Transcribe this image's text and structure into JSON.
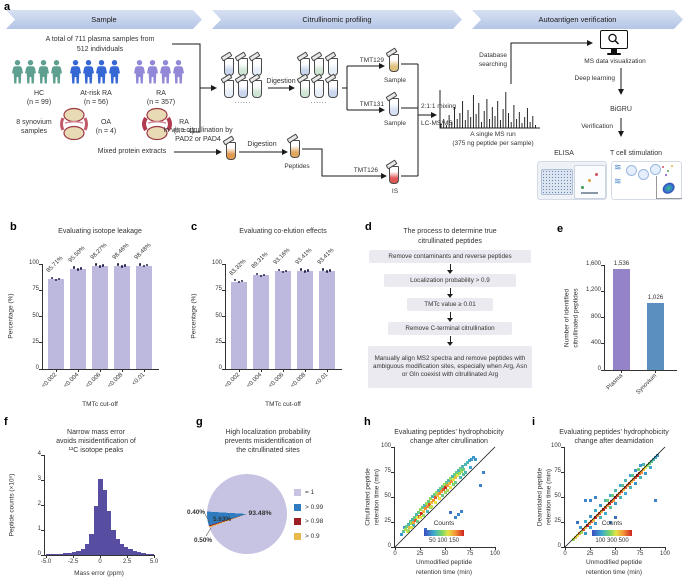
{
  "panel_letters": {
    "a": "a",
    "b": "b",
    "c": "c",
    "d": "d",
    "e": "e",
    "f": "f",
    "g": "g",
    "h": "h",
    "i": "i"
  },
  "panel_a": {
    "banners": [
      {
        "label": "Sample"
      },
      {
        "label": "Citrullinomic profiling"
      },
      {
        "label": "Autoantigen verification"
      }
    ],
    "plasma_total_line1": "A total of 711 plasma samples from",
    "plasma_total_line2": "512 individuals",
    "cohorts": [
      {
        "label": "HC",
        "n": "(n = 99)",
        "color": "#5f9f90"
      },
      {
        "label": "At-risk RA",
        "n": "(n = 56)",
        "color": "#3568d4"
      },
      {
        "label": "RA",
        "n": "(n = 357)",
        "color": "#9189d8"
      }
    ],
    "synovium_line1": "8 synovium",
    "synovium_line2": "samples",
    "synovium_groups": [
      {
        "label": "OA",
        "n": "(n = 4)"
      },
      {
        "label": "RA",
        "n": "(n = 4)"
      }
    ],
    "digestion_label_1": "Digestion",
    "digestion_label_2": "Digestion",
    "dots_1": "......",
    "dots_2": "......",
    "tmt_labels": {
      "tmt129": "TMT129",
      "tmt131": "TMT131",
      "tmt126": "TMT126"
    },
    "tube_labels": {
      "sample_1": "Sample",
      "sample_2": "Sample",
      "is": "IS",
      "peptides": "Peptides"
    },
    "mixing_label": "2:1:1 mixing",
    "lcms_label": "LC-MS/MS",
    "ms_run_line1": "A single MS run",
    "ms_run_line2": "(375 ng peptide per sample)",
    "invitro_line1": "In vitro citrullination by",
    "invitro_line2": "PAD2 or PAD4",
    "mixed_extracts_label": "Mixed protein extracts",
    "database_line1": "Database",
    "database_line2": "searching",
    "ms_vis_label": "MS data visualization",
    "deep_learning_label": "Deep learning",
    "bigru_label": "BiGRU",
    "verification_label": "Verification",
    "elisa_label": "ELISA",
    "tcell_label": "T cell stimulation"
  },
  "panel_d": {
    "title_line1": "The process to determine true",
    "title_line2": "citrullinated peptides",
    "steps": [
      "Remove contaminants and reverse peptides",
      "Localization probability > 0.9",
      "TMTc value ≥ 0.01",
      "Remove C-terminal citrullination",
      "Manually align MS2 spectra and remove peptides with ambiguous modification sites, especially when Arg, Asn or Gln coexist with citrullinated Arg"
    ]
  },
  "chart_data": [
    {
      "id": "b",
      "type": "bar",
      "title": "Evaluating isotope leakage",
      "categories": [
        "<0.002",
        "<0.004",
        "<0.006",
        "<0.008",
        "<0.01"
      ],
      "values": [
        85.71,
        95.5,
        98.27,
        98.46,
        98.48
      ],
      "bar_labels": [
        "85.71%",
        "95.50%",
        "98.27%",
        "98.46%",
        "98.48%"
      ],
      "xlabel": "TMTc cut-off",
      "ylabel": "Percentage (%)",
      "ylim": [
        0,
        100
      ],
      "ytick_labels": [
        "0",
        "25",
        "50",
        "75",
        "100"
      ],
      "bar_color": "#bcb8de",
      "point_color": "#26264f"
    },
    {
      "id": "c",
      "type": "bar",
      "title": "Evaluating co-elution effects",
      "categories": [
        "<0.002",
        "<0.004",
        "<0.006",
        "<0.008",
        "<0.01"
      ],
      "values": [
        83.32,
        89.31,
        93.16,
        93.41,
        93.41
      ],
      "bar_labels": [
        "83.32%",
        "89.31%",
        "93.16%",
        "93.41%",
        "93.41%"
      ],
      "xlabel": "TMTc cut-off",
      "ylabel": "Percentage (%)",
      "ylim": [
        0,
        100
      ],
      "ytick_labels": [
        "0",
        "25",
        "50",
        "75",
        "100"
      ],
      "bar_color": "#bcb8de",
      "point_color": "#26264f"
    },
    {
      "id": "e",
      "type": "bar",
      "title": "",
      "categories": [
        "Plasma",
        "Synovium"
      ],
      "values": [
        1536,
        1026
      ],
      "bar_labels": [
        "1,536",
        "1,026"
      ],
      "ylabel_lines": [
        "Number of identified",
        "citrullinated peptides"
      ],
      "ylim": [
        0,
        1600
      ],
      "ytick_labels": [
        "0",
        "400",
        "800",
        "1,200",
        "1,600"
      ],
      "bar_colors": [
        "#9484c7",
        "#5a8fc0"
      ]
    },
    {
      "id": "f",
      "type": "histogram",
      "title_lines": [
        "Narrow mass error",
        "avoids misidentification of",
        "¹³C isotope peaks"
      ],
      "xlabel": "Mass error (ppm)",
      "ylabel": "Peptide counts (×10⁵)",
      "xlim": [
        -5,
        5
      ],
      "ylim": [
        0,
        4
      ],
      "xtick_labels": [
        "-5.0",
        "-2.5",
        "0",
        "2.5",
        "5.0"
      ],
      "ytick_labels": [
        "0",
        "1",
        "2",
        "3",
        "4"
      ],
      "bin_width": 0.4,
      "counts": [
        0.03,
        0.04,
        0.05,
        0.06,
        0.08,
        0.1,
        0.13,
        0.17,
        0.25,
        0.45,
        0.85,
        1.95,
        3.03,
        2.62,
        1.75,
        1.02,
        0.65,
        0.45,
        0.33,
        0.24,
        0.17,
        0.12,
        0.08,
        0.06,
        0.04
      ],
      "color": "#574ea2"
    },
    {
      "id": "g",
      "type": "pie",
      "title_lines": [
        "High localization probability",
        "prevents misidentification of",
        "the citrullinated sites"
      ],
      "slices": [
        {
          "label": "= 1",
          "pct": 93.48,
          "pct_label": "93.48%",
          "color": "#c7c3e3"
        },
        {
          "label": "> 0.99",
          "pct": 5.63,
          "pct_label": "5.63%",
          "color": "#2f7bbf"
        },
        {
          "label": "> 0.98",
          "pct": 0.4,
          "pct_label": "0.40%",
          "color": "#9c1f24"
        },
        {
          "label": "> 0.9",
          "pct": 0.5,
          "pct_label": "0.50%",
          "color": "#e9b94e"
        }
      ]
    },
    {
      "id": "h",
      "type": "scatter",
      "title_lines": [
        "Evaluating peptides’ hydrophobicity",
        "change after citrullination"
      ],
      "xlabel_lines": [
        "Unmodified peptide",
        "retention time (min)"
      ],
      "ylabel_lines": [
        "Citrullinated peptide",
        "retention time (min)"
      ],
      "xlim": [
        0,
        100
      ],
      "ylim": [
        0,
        100
      ],
      "xtick_labels": [
        "0",
        "25",
        "50",
        "75",
        "100"
      ],
      "ytick_labels": [
        "0",
        "25",
        "50",
        "75",
        "100"
      ],
      "colorbar": {
        "label": "Counts",
        "ticks": [
          "50",
          "100",
          "150"
        ]
      },
      "points": [
        [
          6,
          13,
          0.2
        ],
        [
          8,
          16,
          0.35
        ],
        [
          9,
          20,
          0.2
        ],
        [
          10,
          18,
          0.5
        ],
        [
          11,
          21,
          0.4
        ],
        [
          12,
          16,
          0.6
        ],
        [
          13,
          23,
          0.3
        ],
        [
          14,
          20,
          0.7
        ],
        [
          15,
          26,
          0.4
        ],
        [
          16,
          24,
          0.5
        ],
        [
          17,
          28,
          0.3
        ],
        [
          18,
          25,
          0.75
        ],
        [
          19,
          30,
          0.4
        ],
        [
          20,
          27,
          0.9
        ],
        [
          21,
          33,
          0.3
        ],
        [
          22,
          30,
          0.6
        ],
        [
          23,
          35,
          0.4
        ],
        [
          24,
          31,
          0.9
        ],
        [
          25,
          38,
          0.5
        ],
        [
          26,
          34,
          1
        ],
        [
          27,
          40,
          0.4
        ],
        [
          28,
          36,
          0.7
        ],
        [
          29,
          42,
          0.3
        ],
        [
          30,
          39,
          0.8
        ],
        [
          25,
          30,
          0.6
        ],
        [
          22,
          26,
          0.4
        ],
        [
          18,
          22,
          0.3
        ],
        [
          31,
          44,
          0.5
        ],
        [
          32,
          41,
          0.8
        ],
        [
          33,
          46,
          0.4
        ],
        [
          34,
          43,
          0.9
        ],
        [
          35,
          49,
          0.5
        ],
        [
          36,
          45,
          0.7
        ],
        [
          37,
          51,
          0.3
        ],
        [
          38,
          47,
          0.8
        ],
        [
          39,
          53,
          0.4
        ],
        [
          40,
          50,
          0.9
        ],
        [
          41,
          55,
          0.5
        ],
        [
          42,
          52,
          0.7
        ],
        [
          43,
          57,
          0.3
        ],
        [
          44,
          54,
          0.8
        ],
        [
          45,
          59,
          0.4
        ],
        [
          35,
          40,
          0.5
        ],
        [
          40,
          45,
          0.6
        ],
        [
          32,
          36,
          0.3
        ],
        [
          46,
          56,
          0.8
        ],
        [
          47,
          61,
          0.4
        ],
        [
          48,
          58,
          0.9
        ],
        [
          49,
          63,
          0.5
        ],
        [
          50,
          60,
          1
        ],
        [
          51,
          65,
          0.4
        ],
        [
          52,
          62,
          0.8
        ],
        [
          53,
          67,
          0.3
        ],
        [
          54,
          64,
          0.7
        ],
        [
          55,
          69,
          0.5
        ],
        [
          56,
          66,
          0.8
        ],
        [
          57,
          71,
          0.3
        ],
        [
          58,
          68,
          0.6
        ],
        [
          59,
          73,
          0.4
        ],
        [
          60,
          70,
          0.7
        ],
        [
          50,
          55,
          0.5
        ],
        [
          55,
          60,
          0.6
        ],
        [
          47,
          52,
          0.4
        ],
        [
          61,
          75,
          0.4
        ],
        [
          62,
          72,
          0.6
        ],
        [
          63,
          77,
          0.3
        ],
        [
          64,
          74,
          0.5
        ],
        [
          65,
          79,
          0.4
        ],
        [
          66,
          76,
          0.5
        ],
        [
          67,
          81,
          0.3
        ],
        [
          68,
          78,
          0.4
        ],
        [
          70,
          83,
          0.3
        ],
        [
          72,
          85,
          0.3
        ],
        [
          74,
          87,
          0.25
        ],
        [
          76,
          88,
          0.2
        ],
        [
          78,
          90,
          0.2
        ],
        [
          65,
          70,
          0.3
        ],
        [
          70,
          75,
          0.3
        ],
        [
          60,
          65,
          0.4
        ],
        [
          75,
          80,
          0.25
        ],
        [
          80,
          88,
          0.2
        ],
        [
          60,
          30,
          0.15
        ],
        [
          63,
          33,
          0.15
        ],
        [
          66,
          36,
          0.15
        ],
        [
          85,
          62,
          0.15
        ],
        [
          88,
          75,
          0.15
        ],
        [
          55,
          35,
          0.1
        ],
        [
          30,
          18,
          0.1
        ],
        [
          13,
          17,
          0.5
        ],
        [
          16,
          20,
          0.6
        ],
        [
          44,
          49,
          0.6
        ],
        [
          52,
          57,
          0.5
        ],
        [
          68,
          73,
          0.35
        ],
        [
          36,
          41,
          0.55
        ],
        [
          28,
          32,
          0.5
        ],
        [
          58,
          63,
          0.45
        ]
      ]
    },
    {
      "id": "i",
      "type": "scatter",
      "title_lines": [
        "Evaluating peptides’ hydrophobicity",
        "change after deamidation"
      ],
      "xlabel_lines": [
        "Unmodified peptide",
        "retention time (min)"
      ],
      "ylabel_lines": [
        "Deamidated peptide",
        "retention time (min)"
      ],
      "xlim": [
        0,
        100
      ],
      "ylim": [
        0,
        100
      ],
      "xtick_labels": [
        "0",
        "25",
        "50",
        "75",
        "100"
      ],
      "ytick_labels": [
        "0",
        "25",
        "50",
        "75",
        "100"
      ],
      "colorbar": {
        "label": "Counts",
        "ticks": [
          "100",
          "300",
          "500"
        ]
      },
      "points": [
        [
          8,
          8,
          0.5
        ],
        [
          10,
          10,
          0.7
        ],
        [
          12,
          12,
          0.6
        ],
        [
          14,
          14,
          0.8
        ],
        [
          16,
          15,
          0.5
        ],
        [
          18,
          18,
          0.9
        ],
        [
          20,
          20,
          0.7
        ],
        [
          22,
          22,
          1
        ],
        [
          24,
          24,
          0.8
        ],
        [
          26,
          26,
          0.9
        ],
        [
          28,
          27,
          0.7
        ],
        [
          30,
          30,
          1
        ],
        [
          32,
          32,
          0.8
        ],
        [
          34,
          34,
          0.9
        ],
        [
          36,
          36,
          0.7
        ],
        [
          38,
          38,
          1
        ],
        [
          40,
          40,
          0.9
        ],
        [
          42,
          42,
          0.8
        ],
        [
          44,
          44,
          1
        ],
        [
          46,
          46,
          0.9
        ],
        [
          48,
          47,
          0.8
        ],
        [
          50,
          50,
          1
        ],
        [
          52,
          52,
          0.9
        ],
        [
          54,
          54,
          0.8
        ],
        [
          56,
          56,
          0.9
        ],
        [
          58,
          58,
          0.7
        ],
        [
          60,
          60,
          0.9
        ],
        [
          62,
          62,
          0.8
        ],
        [
          64,
          64,
          0.9
        ],
        [
          66,
          66,
          0.7
        ],
        [
          68,
          68,
          0.8
        ],
        [
          70,
          70,
          0.9
        ],
        [
          72,
          72,
          1
        ],
        [
          74,
          74,
          0.9
        ],
        [
          76,
          75,
          0.8
        ],
        [
          78,
          78,
          0.7
        ],
        [
          80,
          80,
          0.6
        ],
        [
          82,
          82,
          0.5
        ],
        [
          84,
          84,
          0.4
        ],
        [
          86,
          86,
          0.35
        ],
        [
          88,
          88,
          0.3
        ],
        [
          90,
          90,
          0.25
        ],
        [
          92,
          92,
          0.2
        ],
        [
          15,
          20,
          0.2
        ],
        [
          20,
          26,
          0.25
        ],
        [
          25,
          31,
          0.2
        ],
        [
          30,
          37,
          0.25
        ],
        [
          35,
          42,
          0.2
        ],
        [
          40,
          47,
          0.3
        ],
        [
          45,
          52,
          0.25
        ],
        [
          50,
          57,
          0.3
        ],
        [
          55,
          62,
          0.25
        ],
        [
          60,
          67,
          0.3
        ],
        [
          65,
          72,
          0.25
        ],
        [
          70,
          77,
          0.2
        ],
        [
          75,
          82,
          0.2
        ],
        [
          20,
          14,
          0.2
        ],
        [
          30,
          24,
          0.2
        ],
        [
          40,
          34,
          0.25
        ],
        [
          50,
          44,
          0.2
        ],
        [
          60,
          54,
          0.25
        ],
        [
          70,
          64,
          0.2
        ],
        [
          80,
          74,
          0.2
        ],
        [
          45,
          40,
          0.35
        ],
        [
          55,
          50,
          0.3
        ],
        [
          35,
          30,
          0.3
        ],
        [
          65,
          60,
          0.3
        ],
        [
          75,
          70,
          0.3
        ],
        [
          85,
          80,
          0.25
        ],
        [
          25,
          20,
          0.25
        ],
        [
          20,
          47,
          0.15
        ],
        [
          25,
          47,
          0.15
        ],
        [
          30,
          50,
          0.15
        ],
        [
          90,
          47,
          0.15
        ],
        [
          12,
          25,
          0.1
        ],
        [
          45,
          25,
          0.12
        ],
        [
          50,
          30,
          0.1
        ],
        [
          42,
          47,
          0.4
        ],
        [
          47,
          52,
          0.4
        ],
        [
          57,
          62,
          0.35
        ],
        [
          67,
          72,
          0.35
        ],
        [
          73,
          78,
          0.4
        ],
        [
          78,
          83,
          0.3
        ]
      ]
    }
  ]
}
